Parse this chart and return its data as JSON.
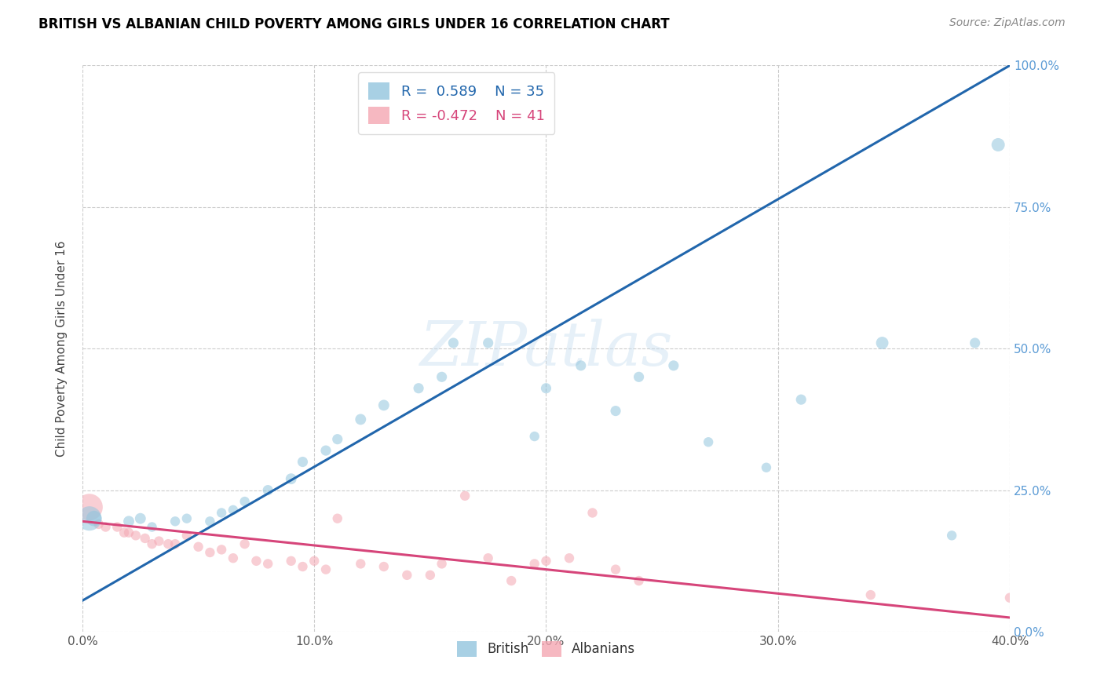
{
  "title": "BRITISH VS ALBANIAN CHILD POVERTY AMONG GIRLS UNDER 16 CORRELATION CHART",
  "source": "Source: ZipAtlas.com",
  "ylabel": "Child Poverty Among Girls Under 16",
  "xlim": [
    0.0,
    0.4
  ],
  "ylim": [
    0.0,
    1.0
  ],
  "xticks": [
    0.0,
    0.1,
    0.2,
    0.3,
    0.4
  ],
  "xticklabels": [
    "0.0%",
    "10.0%",
    "20.0%",
    "30.0%",
    "40.0%"
  ],
  "yticks_right": [
    0.0,
    0.25,
    0.5,
    0.75,
    1.0
  ],
  "yticklabels_right": [
    "0.0%",
    "25.0%",
    "50.0%",
    "75.0%",
    "100.0%"
  ],
  "watermark": "ZIPatlas",
  "legend_british_R": "0.589",
  "legend_british_N": "35",
  "legend_albanian_R": "-0.472",
  "legend_albanian_N": "41",
  "blue_color": "#92c5de",
  "pink_color": "#f4a6b2",
  "trend_blue": "#2166ac",
  "trend_pink": "#d6457a",
  "british_x": [
    0.003,
    0.005,
    0.02,
    0.025,
    0.03,
    0.04,
    0.045,
    0.055,
    0.06,
    0.065,
    0.07,
    0.08,
    0.09,
    0.095,
    0.105,
    0.11,
    0.12,
    0.13,
    0.145,
    0.155,
    0.16,
    0.175,
    0.195,
    0.2,
    0.215,
    0.23,
    0.24,
    0.255,
    0.27,
    0.295,
    0.31,
    0.345,
    0.375,
    0.385,
    0.395
  ],
  "british_y": [
    0.2,
    0.2,
    0.195,
    0.2,
    0.185,
    0.195,
    0.2,
    0.195,
    0.21,
    0.215,
    0.23,
    0.25,
    0.27,
    0.3,
    0.32,
    0.34,
    0.375,
    0.4,
    0.43,
    0.45,
    0.51,
    0.51,
    0.345,
    0.43,
    0.47,
    0.39,
    0.45,
    0.47,
    0.335,
    0.29,
    0.41,
    0.51,
    0.17,
    0.51,
    0.86
  ],
  "british_sizes": [
    500,
    200,
    100,
    100,
    80,
    80,
    80,
    80,
    80,
    80,
    80,
    90,
    100,
    90,
    90,
    90,
    100,
    100,
    90,
    90,
    90,
    90,
    80,
    90,
    90,
    90,
    90,
    90,
    80,
    80,
    90,
    130,
    80,
    90,
    150
  ],
  "albanian_x": [
    0.003,
    0.007,
    0.01,
    0.015,
    0.018,
    0.02,
    0.023,
    0.027,
    0.03,
    0.033,
    0.037,
    0.04,
    0.045,
    0.05,
    0.055,
    0.06,
    0.065,
    0.07,
    0.075,
    0.08,
    0.09,
    0.095,
    0.1,
    0.105,
    0.11,
    0.12,
    0.13,
    0.14,
    0.15,
    0.155,
    0.165,
    0.175,
    0.185,
    0.195,
    0.2,
    0.21,
    0.22,
    0.23,
    0.24,
    0.34,
    0.4
  ],
  "albanian_y": [
    0.22,
    0.19,
    0.185,
    0.185,
    0.175,
    0.175,
    0.17,
    0.165,
    0.155,
    0.16,
    0.155,
    0.155,
    0.17,
    0.15,
    0.14,
    0.145,
    0.13,
    0.155,
    0.125,
    0.12,
    0.125,
    0.115,
    0.125,
    0.11,
    0.2,
    0.12,
    0.115,
    0.1,
    0.1,
    0.12,
    0.24,
    0.13,
    0.09,
    0.12,
    0.125,
    0.13,
    0.21,
    0.11,
    0.09,
    0.065,
    0.06
  ],
  "albanian_sizes": [
    600,
    80,
    80,
    80,
    80,
    80,
    80,
    80,
    80,
    80,
    80,
    80,
    80,
    80,
    80,
    80,
    80,
    80,
    80,
    80,
    80,
    80,
    80,
    80,
    80,
    80,
    80,
    80,
    80,
    80,
    80,
    80,
    80,
    80,
    80,
    80,
    80,
    80,
    80,
    80,
    80
  ],
  "blue_trend_x0": 0.0,
  "blue_trend_y0": 0.055,
  "blue_trend_x1": 0.4,
  "blue_trend_y1": 1.0,
  "pink_trend_x0": 0.0,
  "pink_trend_y0": 0.195,
  "pink_trend_x1": 0.4,
  "pink_trend_y1": 0.025
}
